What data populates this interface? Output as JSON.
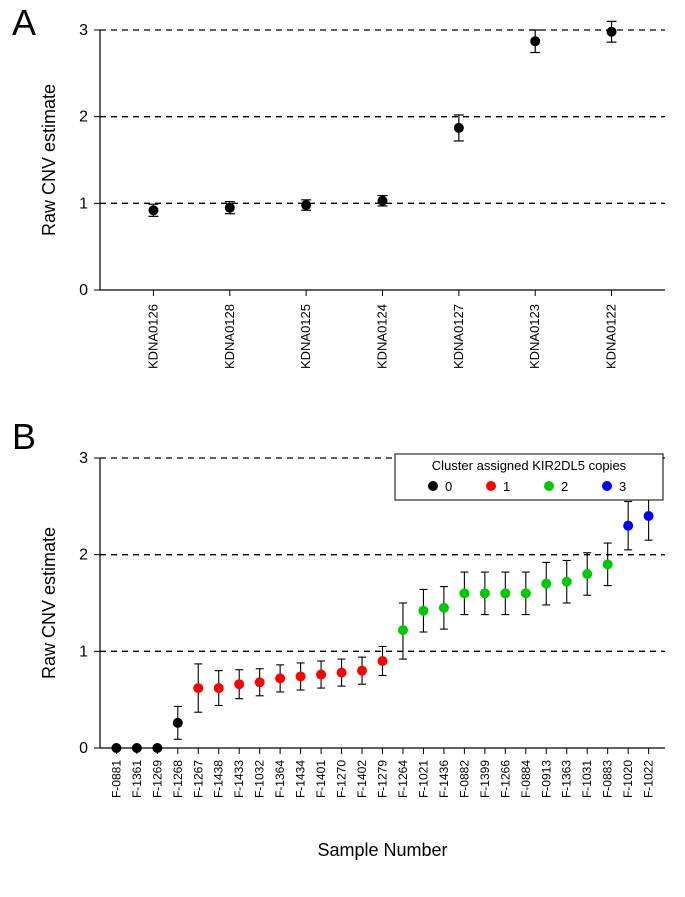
{
  "panelA": {
    "label": "A",
    "label_fontsize": 36,
    "type": "scatter",
    "ylabel": "Raw CNV estimate",
    "label_fontsize_axis": 18,
    "ylim": [
      0,
      3
    ],
    "ytick_step": 1,
    "yticks": [
      0,
      1,
      2,
      3
    ],
    "gridlines": [
      1,
      2,
      3
    ],
    "grid_dash": "6,5",
    "grid_color": "#000000",
    "point_color": "#000000",
    "point_radius": 5,
    "error_color": "#000000",
    "background_color": "#ffffff",
    "tick_fontsize": 12,
    "categories": [
      "KDNA0126",
      "KDNA0128",
      "KDNA0125",
      "KDNA0124",
      "KDNA0127",
      "KDNA0123",
      "KDNA0122"
    ],
    "values": [
      0.92,
      0.95,
      0.98,
      1.03,
      1.87,
      2.87,
      2.98
    ],
    "err_low": [
      0.07,
      0.07,
      0.06,
      0.06,
      0.15,
      0.13,
      0.12
    ],
    "err_high": [
      0.07,
      0.07,
      0.06,
      0.06,
      0.15,
      0.13,
      0.12
    ]
  },
  "panelB": {
    "label": "B",
    "label_fontsize": 36,
    "type": "scatter",
    "ylabel": "Raw CNV estimate",
    "xlabel": "Sample Number",
    "label_fontsize_axis": 18,
    "ylim": [
      0,
      3
    ],
    "ytick_step": 1,
    "yticks": [
      0,
      1,
      2,
      3
    ],
    "gridlines": [
      1,
      2,
      3
    ],
    "grid_dash": "6,5",
    "grid_color": "#000000",
    "background_color": "#ffffff",
    "tick_fontsize": 12,
    "legend": {
      "title": "Cluster assigned KIR2DL5 copies",
      "items": [
        {
          "label": "0",
          "color": "#000000"
        },
        {
          "label": "1",
          "color": "#ff0000"
        },
        {
          "label": "2",
          "color": "#00c800"
        },
        {
          "label": "3",
          "color": "#0000ff"
        }
      ],
      "title_fontsize": 13,
      "item_fontsize": 13,
      "box_stroke": "#000000"
    },
    "cluster_colors": {
      "0": "#000000",
      "1": "#ff0000",
      "2": "#00c800",
      "3": "#0000ff"
    },
    "point_radius": 5,
    "error_color": "#000000",
    "categories": [
      "F-0881",
      "F-1361",
      "F-1269",
      "F-1268",
      "F-1267",
      "F-1438",
      "F-1433",
      "F-1032",
      "F-1364",
      "F-1434",
      "F-1401",
      "F-1270",
      "F-1402",
      "F-1279",
      "F-1264",
      "F-1021",
      "F-1436",
      "F-0882",
      "F-1399",
      "F-1266",
      "F-0884",
      "F-0913",
      "F-1363",
      "F-1031",
      "F-0883",
      "F-1020",
      "F-1022"
    ],
    "values": [
      0.0,
      0.0,
      0.0,
      0.26,
      0.62,
      0.62,
      0.66,
      0.68,
      0.72,
      0.74,
      0.76,
      0.78,
      0.8,
      0.9,
      1.22,
      1.42,
      1.45,
      1.6,
      1.6,
      1.6,
      1.6,
      1.7,
      1.72,
      1.8,
      1.9,
      2.3,
      2.4
    ],
    "err_low": [
      0.0,
      0.0,
      0.0,
      0.17,
      0.25,
      0.18,
      0.15,
      0.14,
      0.14,
      0.14,
      0.14,
      0.14,
      0.14,
      0.15,
      0.3,
      0.22,
      0.22,
      0.22,
      0.22,
      0.22,
      0.22,
      0.22,
      0.22,
      0.22,
      0.22,
      0.25,
      0.25
    ],
    "err_high": [
      0.0,
      0.0,
      0.0,
      0.17,
      0.25,
      0.18,
      0.15,
      0.14,
      0.14,
      0.14,
      0.14,
      0.14,
      0.14,
      0.15,
      0.28,
      0.22,
      0.22,
      0.22,
      0.22,
      0.22,
      0.22,
      0.22,
      0.22,
      0.22,
      0.22,
      0.25,
      0.25
    ],
    "clusters": [
      0,
      0,
      0,
      0,
      1,
      1,
      1,
      1,
      1,
      1,
      1,
      1,
      1,
      1,
      2,
      2,
      2,
      2,
      2,
      2,
      2,
      2,
      2,
      2,
      2,
      3,
      3
    ]
  }
}
